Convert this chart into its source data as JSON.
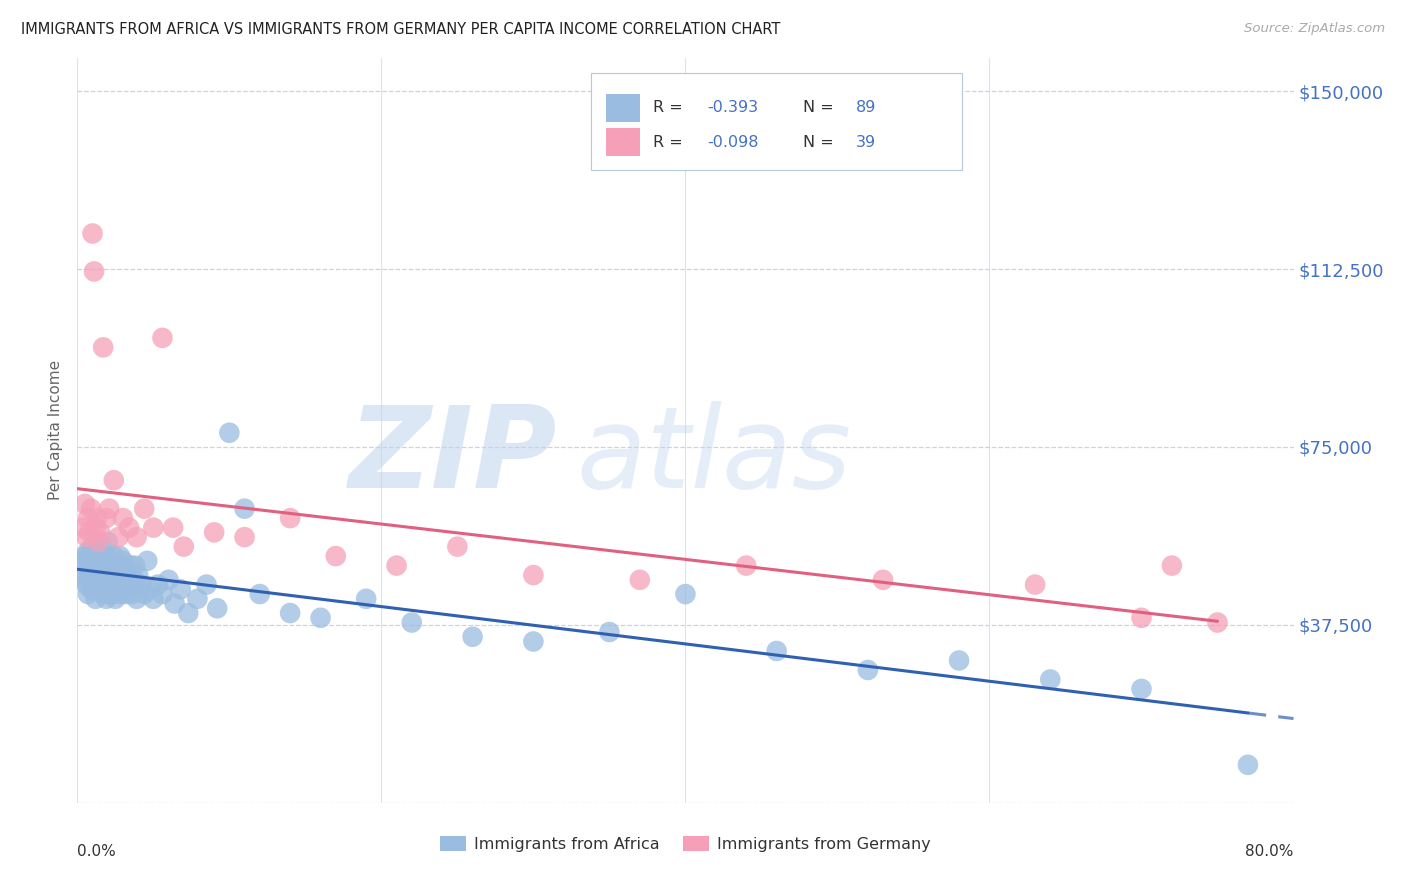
{
  "title": "IMMIGRANTS FROM AFRICA VS IMMIGRANTS FROM GERMANY PER CAPITA INCOME CORRELATION CHART",
  "source": "Source: ZipAtlas.com",
  "ylabel": "Per Capita Income",
  "yticks": [
    0,
    37500,
    75000,
    112500,
    150000
  ],
  "ytick_labels": [
    "",
    "$37,500",
    "$75,000",
    "$112,500",
    "$150,000"
  ],
  "xmin": 0.0,
  "xmax": 0.8,
  "ymin": 0,
  "ymax": 157000,
  "africa_color": "#9abce0",
  "germany_color": "#f5a0b8",
  "africa_line_color": "#3060b0",
  "germany_line_color": "#e06080",
  "legend_label_africa": "Immigrants from Africa",
  "legend_label_germany": "Immigrants from Germany",
  "title_color": "#222222",
  "axis_label_color": "#4472c4",
  "watermark_zip": "ZIP",
  "watermark_atlas": "atlas",
  "africa_scatter_x": [
    0.003,
    0.004,
    0.005,
    0.005,
    0.006,
    0.006,
    0.007,
    0.007,
    0.008,
    0.008,
    0.009,
    0.009,
    0.01,
    0.01,
    0.01,
    0.011,
    0.011,
    0.012,
    0.012,
    0.013,
    0.013,
    0.014,
    0.014,
    0.015,
    0.015,
    0.016,
    0.016,
    0.017,
    0.017,
    0.018,
    0.018,
    0.019,
    0.019,
    0.02,
    0.02,
    0.021,
    0.022,
    0.022,
    0.023,
    0.024,
    0.025,
    0.025,
    0.026,
    0.027,
    0.028,
    0.028,
    0.029,
    0.03,
    0.031,
    0.032,
    0.033,
    0.034,
    0.035,
    0.036,
    0.037,
    0.038,
    0.039,
    0.04,
    0.042,
    0.044,
    0.046,
    0.048,
    0.05,
    0.053,
    0.056,
    0.06,
    0.064,
    0.068,
    0.073,
    0.079,
    0.085,
    0.092,
    0.1,
    0.11,
    0.12,
    0.14,
    0.16,
    0.19,
    0.22,
    0.26,
    0.3,
    0.35,
    0.4,
    0.46,
    0.52,
    0.58,
    0.64,
    0.7,
    0.77
  ],
  "africa_scatter_y": [
    51000,
    48000,
    52000,
    47000,
    50000,
    46000,
    53000,
    44000,
    51000,
    48000,
    49000,
    45000,
    54000,
    50000,
    47000,
    52000,
    46000,
    51000,
    43000,
    53000,
    48000,
    50000,
    45000,
    52000,
    46000,
    54000,
    48000,
    51000,
    44000,
    50000,
    46000,
    52000,
    43000,
    55000,
    47000,
    50000,
    48000,
    44000,
    49000,
    52000,
    46000,
    43000,
    50000,
    47000,
    52000,
    44000,
    48000,
    51000,
    47000,
    44000,
    49000,
    46000,
    50000,
    44000,
    47000,
    50000,
    43000,
    48000,
    46000,
    44000,
    51000,
    45000,
    43000,
    46000,
    44000,
    47000,
    42000,
    45000,
    40000,
    43000,
    46000,
    41000,
    78000,
    62000,
    44000,
    40000,
    39000,
    43000,
    38000,
    35000,
    34000,
    36000,
    44000,
    32000,
    28000,
    30000,
    26000,
    24000,
    8000
  ],
  "germany_scatter_x": [
    0.004,
    0.005,
    0.006,
    0.007,
    0.008,
    0.009,
    0.01,
    0.011,
    0.012,
    0.013,
    0.014,
    0.015,
    0.017,
    0.019,
    0.021,
    0.024,
    0.027,
    0.03,
    0.034,
    0.039,
    0.044,
    0.05,
    0.056,
    0.063,
    0.07,
    0.09,
    0.11,
    0.14,
    0.17,
    0.21,
    0.25,
    0.3,
    0.37,
    0.44,
    0.53,
    0.63,
    0.7,
    0.72,
    0.75
  ],
  "germany_scatter_y": [
    58000,
    63000,
    56000,
    60000,
    57000,
    62000,
    120000,
    112000,
    58000,
    60000,
    55000,
    57000,
    96000,
    60000,
    62000,
    68000,
    56000,
    60000,
    58000,
    56000,
    62000,
    58000,
    98000,
    58000,
    54000,
    57000,
    56000,
    60000,
    52000,
    50000,
    54000,
    48000,
    47000,
    50000,
    47000,
    46000,
    39000,
    50000,
    38000
  ]
}
